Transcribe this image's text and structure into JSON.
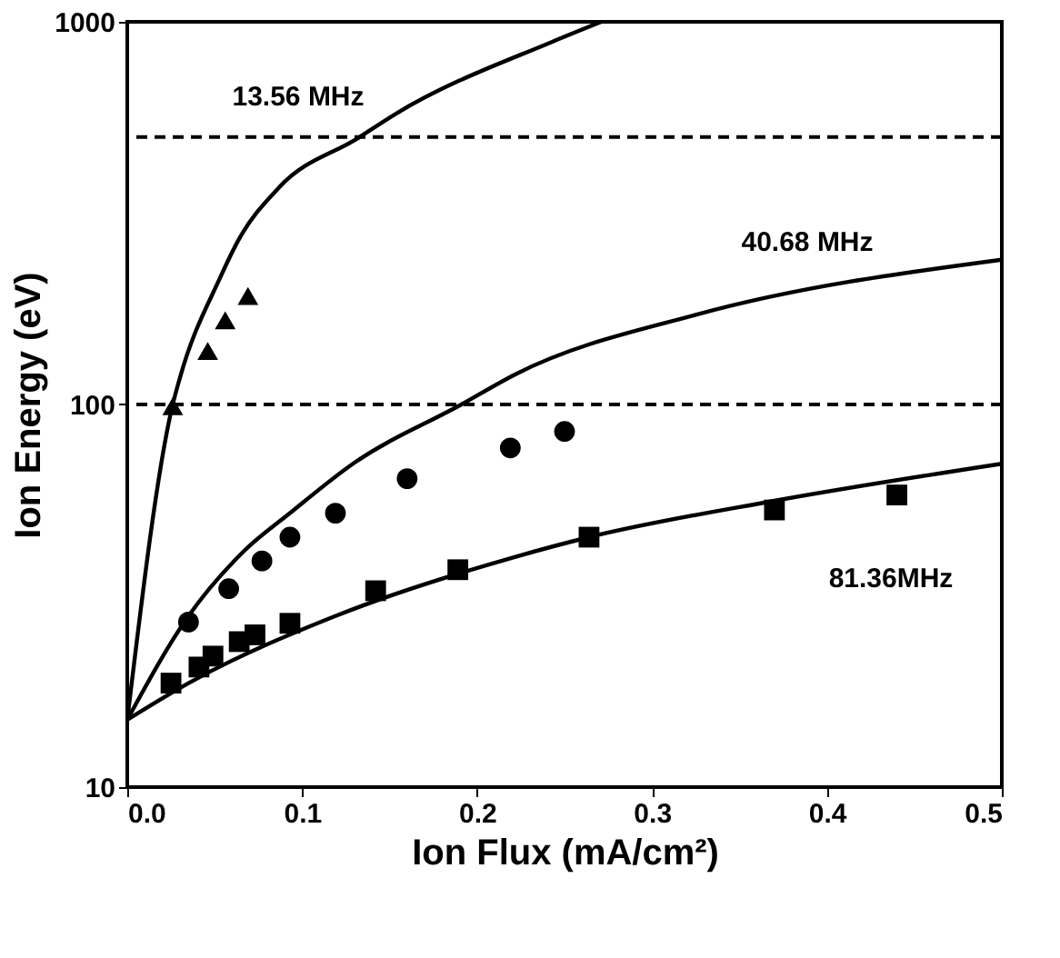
{
  "chart_data": {
    "type": "scatter",
    "xlabel": "Ion Flux (mA/cm²)",
    "ylabel": "Ion Energy (eV)",
    "xlim": [
      0,
      0.5
    ],
    "xticks": [
      {
        "value": 0,
        "label": "0.0"
      },
      {
        "value": 0.1,
        "label": "0.1"
      },
      {
        "value": 0.2,
        "label": "0.2"
      },
      {
        "value": 0.3,
        "label": "0.3"
      },
      {
        "value": 0.4,
        "label": "0.4"
      },
      {
        "value": 0.5,
        "label": "0.5"
      }
    ],
    "ylim": [
      10,
      1000
    ],
    "yticks": [
      10,
      100,
      1000
    ],
    "log": true,
    "grid": false,
    "legend": false,
    "series": [
      {
        "type": "line",
        "color": "#000000",
        "marker": "none",
        "line_style": "solid",
        "x": [
          0,
          0.026,
          0.03,
          0.053,
          0.063,
          0.087,
          0.132,
          0.153,
          0.243,
          0.271
        ],
        "values": [
          15,
          100,
          117,
          214,
          266,
          370,
          497,
          573,
          887,
          1000
        ]
      },
      {
        "type": "line",
        "color": "#000000",
        "marker": "none",
        "line_style": "solid",
        "x": [
          0,
          0.035,
          0.067,
          0.093,
          0.129,
          0.191,
          0.222,
          0.326,
          0.5
        ],
        "values": [
          15,
          28,
          41.5,
          52,
          70,
          100,
          120,
          172,
          239
        ]
      },
      {
        "type": "line",
        "color": "#000000",
        "marker": "none",
        "line_style": "solid",
        "x": [
          0,
          0.035,
          0.119,
          0.222,
          0.264,
          0.37,
          0.5
        ],
        "values": [
          15,
          18.7,
          28,
          40,
          45,
          56,
          70
        ]
      },
      {
        "color": "#000000",
        "marker": "triangle",
        "x": [
          0.026,
          0.046,
          0.056,
          0.069
        ],
        "values": [
          99,
          138,
          166,
          192
        ]
      },
      {
        "color": "#000000",
        "marker": "circle",
        "x": [
          0.035,
          0.058,
          0.077,
          0.093,
          0.119,
          0.16,
          0.219,
          0.25
        ],
        "values": [
          27,
          33,
          39,
          45,
          52,
          64,
          77,
          85
        ]
      },
      {
        "color": "#000000",
        "marker": "square",
        "x": [
          0.025,
          0.041,
          0.049,
          0.064,
          0.073,
          0.093,
          0.142,
          0.189,
          0.264,
          0.37,
          0.44
        ],
        "values": [
          18.7,
          20.6,
          22,
          24,
          25,
          26.8,
          32.6,
          37,
          45,
          53,
          58
        ]
      }
    ],
    "ref_lines": [
      {
        "axis": "y",
        "value": 500,
        "color": "#000000",
        "line_style": "dashed"
      },
      {
        "axis": "y",
        "value": 100,
        "color": "#000000",
        "line_style": "dashed"
      }
    ],
    "annotations": [
      "13.56 MHz",
      "40.68 MHz",
      "81.36MHz"
    ]
  }
}
